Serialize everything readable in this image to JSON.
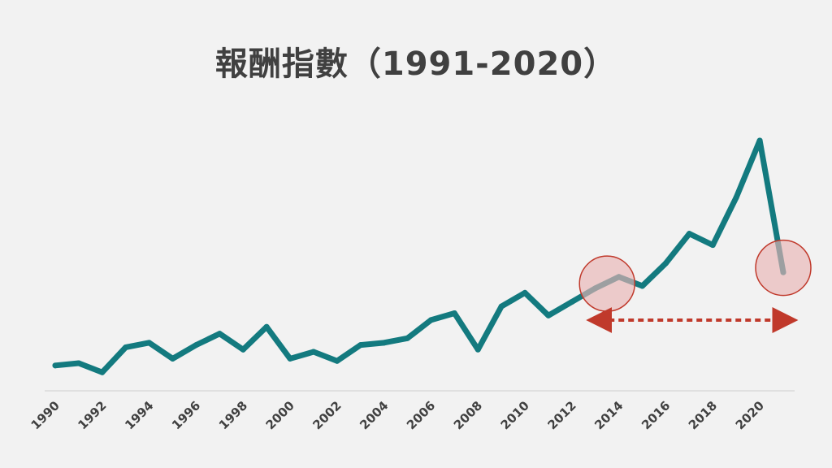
{
  "chart_data": {
    "type": "line",
    "title": "報酬指數（1991-2020）",
    "x": [
      1990,
      1991,
      1992,
      1993,
      1994,
      1995,
      1996,
      1997,
      1998,
      1999,
      2000,
      2001,
      2002,
      2003,
      2004,
      2005,
      2006,
      2007,
      2008,
      2009,
      2010,
      2011,
      2012,
      2013,
      2014,
      2015,
      2016,
      2017,
      2018,
      2019,
      2020,
      2021
    ],
    "series": [
      {
        "values": [
          14,
          15,
          11,
          22,
          24,
          17,
          23,
          28,
          21,
          31,
          17,
          20,
          16,
          23,
          24,
          26,
          34,
          37,
          21,
          40,
          46,
          36,
          42,
          48,
          53,
          49,
          59,
          72,
          67,
          88,
          113,
          55
        ]
      }
    ],
    "tick_labels": [
      "1990",
      "1992",
      "1994",
      "1996",
      "1998",
      "2000",
      "2002",
      "2004",
      "2006",
      "2008",
      "2010",
      "2012",
      "2014",
      "2016",
      "2018",
      "2020"
    ],
    "xlabel": "",
    "ylabel": "",
    "grid": false,
    "highlights": [
      {
        "x": 2013.5,
        "y": 50
      },
      {
        "x": 2021,
        "y": 57
      }
    ],
    "arrow_range": [
      2013.5,
      2021.5
    ],
    "colors": {
      "line": "#137a7f",
      "highlight_fill": "#e8b4b4",
      "highlight_stroke": "#c0392b",
      "arrow": "#c0392b",
      "axis": "#d9d9d9",
      "text": "#404040"
    }
  }
}
